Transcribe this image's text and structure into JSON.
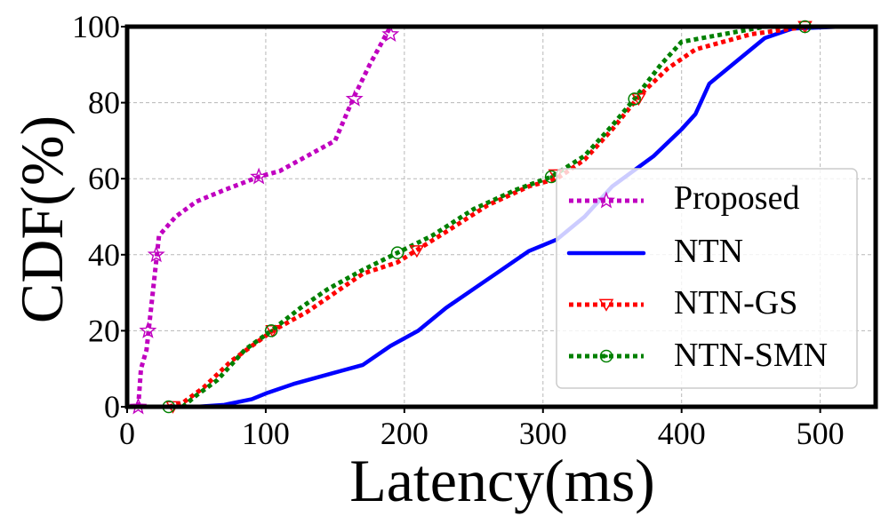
{
  "chart_data": {
    "type": "line",
    "title": "",
    "xlabel": "Latency(ms)",
    "ylabel": "CDF(%)",
    "xlim": [
      0,
      540
    ],
    "ylim": [
      0,
      100
    ],
    "xticks": [
      0,
      100,
      200,
      300,
      400,
      500
    ],
    "yticks": [
      0,
      20,
      40,
      60,
      80,
      100
    ],
    "grid": true,
    "legend_position": "bottom-right",
    "series": [
      {
        "name": "Proposed",
        "color": "#c000c0",
        "style": "dotted",
        "marker": "star",
        "points": [
          [
            8,
            0
          ],
          [
            10,
            10
          ],
          [
            14,
            15
          ],
          [
            17,
            25
          ],
          [
            20,
            35
          ],
          [
            23,
            45
          ],
          [
            35,
            50
          ],
          [
            50,
            54
          ],
          [
            70,
            57
          ],
          [
            95,
            60.5
          ],
          [
            110,
            62
          ],
          [
            130,
            66
          ],
          [
            150,
            70
          ],
          [
            163,
            81
          ],
          [
            175,
            90
          ],
          [
            190,
            100
          ]
        ],
        "marker_points": [
          [
            8,
            0
          ],
          [
            15,
            20
          ],
          [
            21,
            40
          ],
          [
            95,
            60.5
          ],
          [
            164,
            81
          ],
          [
            190,
            98
          ]
        ]
      },
      {
        "name": "NTN",
        "color": "#0000ff",
        "style": "solid",
        "marker": "none",
        "points": [
          [
            50,
            0
          ],
          [
            70,
            0.5
          ],
          [
            90,
            2
          ],
          [
            100,
            3.5
          ],
          [
            120,
            6
          ],
          [
            150,
            9
          ],
          [
            170,
            11
          ],
          [
            190,
            16
          ],
          [
            210,
            20
          ],
          [
            230,
            26
          ],
          [
            250,
            31
          ],
          [
            270,
            36
          ],
          [
            290,
            41
          ],
          [
            310,
            44
          ],
          [
            330,
            50
          ],
          [
            350,
            58
          ],
          [
            380,
            66
          ],
          [
            400,
            73
          ],
          [
            410,
            77
          ],
          [
            420,
            85
          ],
          [
            440,
            91
          ],
          [
            460,
            97
          ],
          [
            480,
            99.5
          ],
          [
            515,
            100
          ]
        ],
        "marker_points": []
      },
      {
        "name": "NTN-GS",
        "color": "#ff0000",
        "style": "dotted",
        "marker": "triangle-down",
        "points": [
          [
            30,
            0
          ],
          [
            40,
            1
          ],
          [
            55,
            5
          ],
          [
            75,
            12
          ],
          [
            90,
            16
          ],
          [
            105,
            20
          ],
          [
            130,
            25
          ],
          [
            150,
            30
          ],
          [
            170,
            35
          ],
          [
            195,
            38
          ],
          [
            208,
            41
          ],
          [
            230,
            46
          ],
          [
            260,
            53
          ],
          [
            290,
            58
          ],
          [
            310,
            60
          ],
          [
            330,
            65
          ],
          [
            350,
            73
          ],
          [
            370,
            82
          ],
          [
            390,
            89
          ],
          [
            410,
            94
          ],
          [
            450,
            98
          ],
          [
            490,
            100
          ]
        ],
        "marker_points": [
          [
            33,
            0
          ],
          [
            105,
            20
          ],
          [
            209,
            41
          ],
          [
            309,
            61
          ],
          [
            369,
            81
          ],
          [
            489,
            100
          ]
        ]
      },
      {
        "name": "NTN-SMN",
        "color": "#008000",
        "style": "dotted",
        "marker": "circle-dot",
        "points": [
          [
            40,
            0
          ],
          [
            50,
            3
          ],
          [
            65,
            7
          ],
          [
            85,
            15
          ],
          [
            104,
            20
          ],
          [
            125,
            26
          ],
          [
            145,
            31
          ],
          [
            170,
            36
          ],
          [
            195,
            40.5
          ],
          [
            220,
            45
          ],
          [
            250,
            52
          ],
          [
            280,
            57
          ],
          [
            306,
            60.5
          ],
          [
            330,
            66
          ],
          [
            350,
            74
          ],
          [
            366,
            81
          ],
          [
            385,
            90
          ],
          [
            400,
            96
          ],
          [
            430,
            98
          ],
          [
            460,
            100
          ],
          [
            490,
            100
          ]
        ],
        "marker_points": [
          [
            30,
            0
          ],
          [
            104,
            20
          ],
          [
            195,
            40.5
          ],
          [
            306,
            60.5
          ],
          [
            366,
            81
          ],
          [
            489,
            100
          ]
        ]
      }
    ]
  }
}
